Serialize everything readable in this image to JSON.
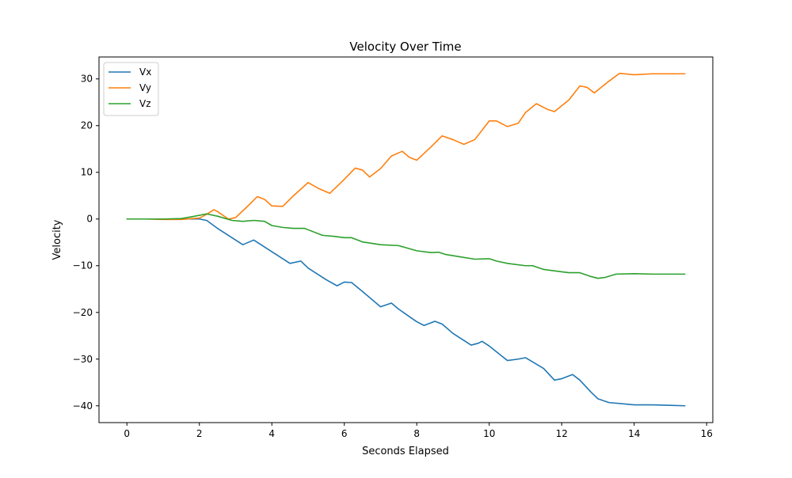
{
  "chart_data": {
    "type": "line",
    "title": "Velocity Over Time",
    "xlabel": "Seconds Elapsed",
    "ylabel": "Velocity",
    "xlim": [
      -0.77,
      16.17
    ],
    "ylim": [
      -43.6,
      34.7
    ],
    "xticks": [
      0,
      2,
      4,
      6,
      8,
      10,
      12,
      14,
      16
    ],
    "yticks": [
      -40,
      -30,
      -20,
      -10,
      0,
      10,
      20,
      30
    ],
    "grid": false,
    "legend_position": "upper-left",
    "series": [
      {
        "name": "Vx",
        "color": "#1f77b4",
        "points": [
          [
            0.0,
            0.0
          ],
          [
            0.5,
            0.0
          ],
          [
            1.0,
            0.0
          ],
          [
            1.5,
            0.0
          ],
          [
            2.0,
            0.0
          ],
          [
            2.2,
            -0.3
          ],
          [
            2.5,
            -2.0
          ],
          [
            3.0,
            -4.5
          ],
          [
            3.2,
            -5.5
          ],
          [
            3.5,
            -4.5
          ],
          [
            3.7,
            -5.5
          ],
          [
            4.0,
            -7.0
          ],
          [
            4.5,
            -9.5
          ],
          [
            4.8,
            -9.0
          ],
          [
            5.0,
            -10.5
          ],
          [
            5.5,
            -13.0
          ],
          [
            5.8,
            -14.3
          ],
          [
            6.0,
            -13.5
          ],
          [
            6.2,
            -13.6
          ],
          [
            6.5,
            -15.5
          ],
          [
            7.0,
            -18.8
          ],
          [
            7.3,
            -18.0
          ],
          [
            7.5,
            -19.3
          ],
          [
            8.0,
            -22.0
          ],
          [
            8.2,
            -22.8
          ],
          [
            8.5,
            -21.9
          ],
          [
            8.7,
            -22.5
          ],
          [
            9.0,
            -24.5
          ],
          [
            9.5,
            -27.0
          ],
          [
            9.7,
            -26.6
          ],
          [
            9.8,
            -26.2
          ],
          [
            10.0,
            -27.2
          ],
          [
            10.5,
            -30.3
          ],
          [
            10.8,
            -30.0
          ],
          [
            11.0,
            -29.7
          ],
          [
            11.5,
            -32.0
          ],
          [
            11.8,
            -34.5
          ],
          [
            12.0,
            -34.2
          ],
          [
            12.3,
            -33.3
          ],
          [
            12.5,
            -34.5
          ],
          [
            12.8,
            -37.0
          ],
          [
            13.0,
            -38.5
          ],
          [
            13.3,
            -39.3
          ],
          [
            14.0,
            -39.8
          ],
          [
            14.5,
            -39.8
          ],
          [
            15.0,
            -39.9
          ],
          [
            15.4,
            -40.0
          ]
        ]
      },
      {
        "name": "Vy",
        "color": "#ff7f0e",
        "points": [
          [
            0.0,
            0.0
          ],
          [
            0.5,
            0.0
          ],
          [
            1.0,
            -0.1
          ],
          [
            1.5,
            -0.1
          ],
          [
            2.0,
            0.2
          ],
          [
            2.2,
            1.0
          ],
          [
            2.4,
            2.0
          ],
          [
            2.5,
            1.6
          ],
          [
            2.8,
            0.0
          ],
          [
            3.0,
            0.3
          ],
          [
            3.3,
            2.5
          ],
          [
            3.6,
            4.8
          ],
          [
            3.8,
            4.2
          ],
          [
            4.0,
            2.8
          ],
          [
            4.3,
            2.7
          ],
          [
            4.6,
            5.0
          ],
          [
            5.0,
            7.8
          ],
          [
            5.3,
            6.5
          ],
          [
            5.6,
            5.5
          ],
          [
            6.0,
            8.5
          ],
          [
            6.3,
            10.9
          ],
          [
            6.5,
            10.5
          ],
          [
            6.7,
            9.0
          ],
          [
            7.0,
            10.8
          ],
          [
            7.3,
            13.5
          ],
          [
            7.6,
            14.5
          ],
          [
            7.8,
            13.2
          ],
          [
            8.0,
            12.6
          ],
          [
            8.4,
            15.5
          ],
          [
            8.7,
            17.8
          ],
          [
            9.0,
            17.0
          ],
          [
            9.3,
            16.0
          ],
          [
            9.6,
            17.0
          ],
          [
            10.0,
            21.0
          ],
          [
            10.2,
            21.0
          ],
          [
            10.5,
            19.8
          ],
          [
            10.8,
            20.5
          ],
          [
            11.0,
            22.8
          ],
          [
            11.3,
            24.7
          ],
          [
            11.6,
            23.5
          ],
          [
            11.8,
            23.0
          ],
          [
            12.2,
            25.5
          ],
          [
            12.5,
            28.5
          ],
          [
            12.7,
            28.2
          ],
          [
            12.9,
            27.0
          ],
          [
            13.3,
            29.5
          ],
          [
            13.6,
            31.2
          ],
          [
            14.0,
            30.9
          ],
          [
            14.5,
            31.1
          ],
          [
            15.0,
            31.1
          ],
          [
            15.4,
            31.1
          ]
        ]
      },
      {
        "name": "Vz",
        "color": "#2ca02c",
        "points": [
          [
            0.0,
            0.0
          ],
          [
            0.5,
            0.0
          ],
          [
            1.0,
            0.0
          ],
          [
            1.5,
            0.1
          ],
          [
            1.8,
            0.5
          ],
          [
            2.2,
            1.1
          ],
          [
            2.5,
            0.6
          ],
          [
            2.9,
            -0.3
          ],
          [
            3.2,
            -0.5
          ],
          [
            3.5,
            -0.3
          ],
          [
            3.8,
            -0.5
          ],
          [
            4.0,
            -1.4
          ],
          [
            4.3,
            -1.8
          ],
          [
            4.6,
            -2.0
          ],
          [
            4.9,
            -2.0
          ],
          [
            5.0,
            -2.3
          ],
          [
            5.4,
            -3.5
          ],
          [
            5.7,
            -3.7
          ],
          [
            6.0,
            -4.0
          ],
          [
            6.2,
            -4.0
          ],
          [
            6.5,
            -4.9
          ],
          [
            7.0,
            -5.5
          ],
          [
            7.5,
            -5.7
          ],
          [
            8.0,
            -6.8
          ],
          [
            8.4,
            -7.2
          ],
          [
            8.6,
            -7.1
          ],
          [
            8.8,
            -7.6
          ],
          [
            9.2,
            -8.1
          ],
          [
            9.6,
            -8.6
          ],
          [
            10.0,
            -8.5
          ],
          [
            10.2,
            -9.0
          ],
          [
            10.5,
            -9.5
          ],
          [
            11.0,
            -10.0
          ],
          [
            11.2,
            -10.0
          ],
          [
            11.5,
            -10.8
          ],
          [
            12.0,
            -11.3
          ],
          [
            12.2,
            -11.5
          ],
          [
            12.5,
            -11.5
          ],
          [
            12.8,
            -12.3
          ],
          [
            13.0,
            -12.7
          ],
          [
            13.2,
            -12.5
          ],
          [
            13.5,
            -11.8
          ],
          [
            14.0,
            -11.7
          ],
          [
            14.5,
            -11.8
          ],
          [
            15.0,
            -11.8
          ],
          [
            15.4,
            -11.8
          ]
        ]
      }
    ]
  }
}
